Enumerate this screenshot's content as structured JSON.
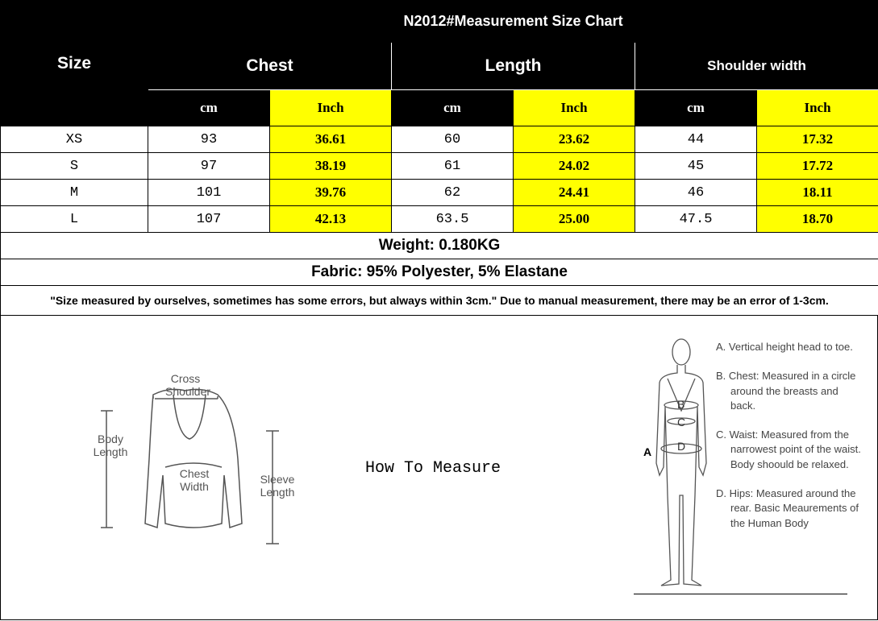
{
  "title": "N2012#Measurement Size Chart",
  "size_header": "Size",
  "groups": [
    "Chest",
    "Length",
    "Shoulder width"
  ],
  "units": {
    "cm": "cm",
    "inch": "Inch"
  },
  "rows": [
    {
      "size": "XS",
      "chest_cm": "93",
      "chest_in": "36.61",
      "length_cm": "60",
      "length_in": "23.62",
      "shoulder_cm": "44",
      "shoulder_in": "17.32"
    },
    {
      "size": "S",
      "chest_cm": "97",
      "chest_in": "38.19",
      "length_cm": "61",
      "length_in": "24.02",
      "shoulder_cm": "45",
      "shoulder_in": "17.72"
    },
    {
      "size": "M",
      "chest_cm": "101",
      "chest_in": "39.76",
      "length_cm": "62",
      "length_in": "24.41",
      "shoulder_cm": "46",
      "shoulder_in": "18.11"
    },
    {
      "size": "L",
      "chest_cm": "107",
      "chest_in": "42.13",
      "length_cm": "63.5",
      "length_in": "25.00",
      "shoulder_cm": "47.5",
      "shoulder_in": "18.70"
    }
  ],
  "weight": "Weight: 0.180KG",
  "fabric": "Fabric: 95% Polyester, 5% Elastane",
  "note": "\"Size measured by ourselves, sometimes has some errors, but always within 3cm.\" Due to manual measurement, there may be an error of 1-3cm.",
  "how_to_measure": "How To Measure",
  "sweater_labels": {
    "cross_shoulder": "Cross Shoulder",
    "body_length": "Body Length",
    "chest_width": "Chest Width",
    "sleeve_length": "Sleeve Length"
  },
  "body_letters": [
    "A",
    "B",
    "C",
    "D"
  ],
  "body_notes": [
    "A. Vertical height head to toe.",
    "B. Chest: Measured in a circle around the breasts and back.",
    "C. Waist: Measured from the narrowest point of the waist. Body shoould be relaxed.",
    "D. Hips: Measured around the rear. Basic Meaurements of the Human Body"
  ],
  "colors": {
    "header_bg": "#000000",
    "inch_highlight": "#ffff00"
  }
}
